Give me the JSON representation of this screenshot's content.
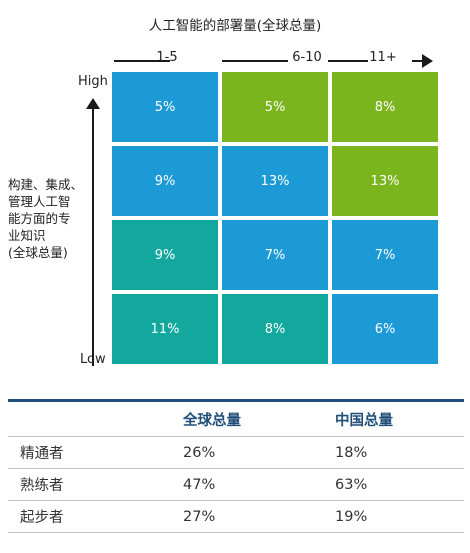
{
  "chart_data": {
    "type": "heatmap",
    "title": "人工智能的部署量(全球总量)",
    "x_categories": [
      "1-5",
      "6-10",
      "11+"
    ],
    "y_label": "构建、集成、\n管理人工智\n能方面的专\n业知识\n(全球总量)",
    "y_high": "High",
    "y_low": "Low",
    "rows": [
      {
        "values": [
          "5%",
          "5%",
          "8%"
        ],
        "colors": [
          "#1b9ad6",
          "#7ab51d",
          "#7ab51d"
        ]
      },
      {
        "values": [
          "9%",
          "13%",
          "13%"
        ],
        "colors": [
          "#1b9ad6",
          "#1b9ad6",
          "#7ab51d"
        ]
      },
      {
        "values": [
          "9%",
          "7%",
          "7%"
        ],
        "colors": [
          "#13a89e",
          "#1b9ad6",
          "#1b9ad6"
        ]
      },
      {
        "values": [
          "11%",
          "8%",
          "6%"
        ],
        "colors": [
          "#13a89e",
          "#13a89e",
          "#1b9ad6"
        ]
      }
    ]
  },
  "table": {
    "headers": [
      "",
      "全球总量",
      "中国总量"
    ],
    "rows": [
      [
        "精通者",
        "26%",
        "18%"
      ],
      [
        "熟练者",
        "47%",
        "63%"
      ],
      [
        "起步者",
        "27%",
        "19%"
      ]
    ]
  },
  "colors": {
    "blue": "#1b9ad6",
    "green": "#7ab51d",
    "teal": "#13a89e",
    "header_text": "#1f4e79"
  }
}
